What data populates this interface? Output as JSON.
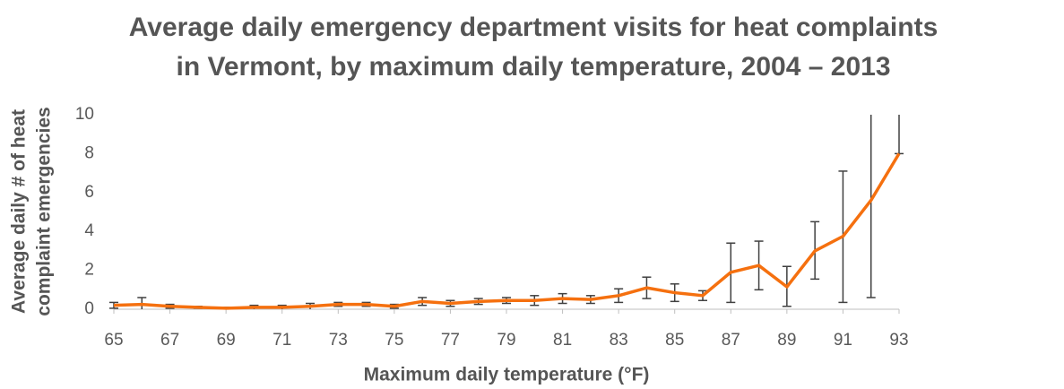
{
  "chart_data": {
    "type": "line",
    "title": [
      "Average daily emergency department visits for heat complaints",
      "in Vermont, by maximum daily temperature, 2004 – 2013"
    ],
    "xlabel": "Maximum daily temperature (°F)",
    "ylabel": [
      "Average daily # of heat",
      "complaint emergencies"
    ],
    "x": [
      65,
      66,
      67,
      68,
      69,
      70,
      71,
      72,
      73,
      74,
      75,
      76,
      77,
      78,
      79,
      80,
      81,
      82,
      83,
      84,
      85,
      86,
      87,
      88,
      89,
      90,
      91,
      92,
      93
    ],
    "series": [
      {
        "color": "#f5700f",
        "values": [
          0.2,
          0.25,
          0.15,
          0.1,
          0.05,
          0.1,
          0.1,
          0.15,
          0.25,
          0.25,
          0.15,
          0.4,
          0.3,
          0.4,
          0.45,
          0.45,
          0.55,
          0.5,
          0.7,
          1.1,
          0.85,
          0.7,
          1.9,
          2.25,
          1.15,
          3.0,
          3.75,
          5.6,
          8.0
        ],
        "error_plus": [
          0.15,
          0.35,
          0.1,
          0.05,
          0.05,
          0.1,
          0.1,
          0.15,
          0.1,
          0.1,
          0.1,
          0.2,
          0.15,
          0.15,
          0.15,
          0.25,
          0.25,
          0.2,
          0.35,
          0.55,
          0.45,
          0.25,
          1.5,
          1.25,
          1.05,
          1.5,
          3.35,
          5.0,
          2.0
        ],
        "error_minus": [
          0.15,
          0.25,
          0.1,
          0.05,
          0.05,
          0.1,
          0.1,
          0.15,
          0.1,
          0.1,
          0.1,
          0.2,
          0.15,
          0.15,
          0.15,
          0.25,
          0.25,
          0.2,
          0.35,
          0.55,
          0.45,
          0.25,
          1.55,
          1.25,
          1.0,
          1.45,
          3.4,
          5.0,
          0
        ],
        "error_color": "#404040"
      }
    ],
    "xlim": [
      65,
      93
    ],
    "xticks": [
      65,
      67,
      69,
      71,
      73,
      75,
      77,
      79,
      81,
      83,
      85,
      87,
      89,
      91,
      93
    ],
    "ylim": [
      0,
      10
    ],
    "yticks": [
      0,
      2,
      4,
      6,
      8,
      10
    ]
  }
}
